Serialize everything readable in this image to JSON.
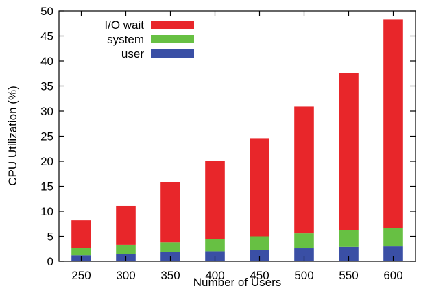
{
  "chart_data": {
    "type": "bar",
    "stacked": true,
    "xlabel": "Number of Users",
    "ylabel": "CPU Utilization (%)",
    "ylim": [
      0,
      50
    ],
    "yticks": [
      0,
      5,
      10,
      15,
      20,
      25,
      30,
      35,
      40,
      45,
      50
    ],
    "categories": [
      "250",
      "300",
      "350",
      "400",
      "450",
      "500",
      "550",
      "600"
    ],
    "series": [
      {
        "name": "user",
        "color": "#3a4fa5",
        "values": [
          1.2,
          1.5,
          1.8,
          2.0,
          2.3,
          2.6,
          2.9,
          3.0
        ]
      },
      {
        "name": "system",
        "color": "#67c043",
        "values": [
          1.5,
          1.8,
          2.0,
          2.4,
          2.7,
          3.0,
          3.3,
          3.7
        ]
      },
      {
        "name": "I/O wait",
        "color": "#e8262a",
        "values": [
          5.5,
          7.8,
          12.0,
          15.6,
          19.6,
          25.3,
          31.4,
          41.6
        ]
      }
    ],
    "legend": {
      "position": "top-left",
      "order": [
        "I/O wait",
        "system",
        "user"
      ]
    },
    "grid": false
  }
}
